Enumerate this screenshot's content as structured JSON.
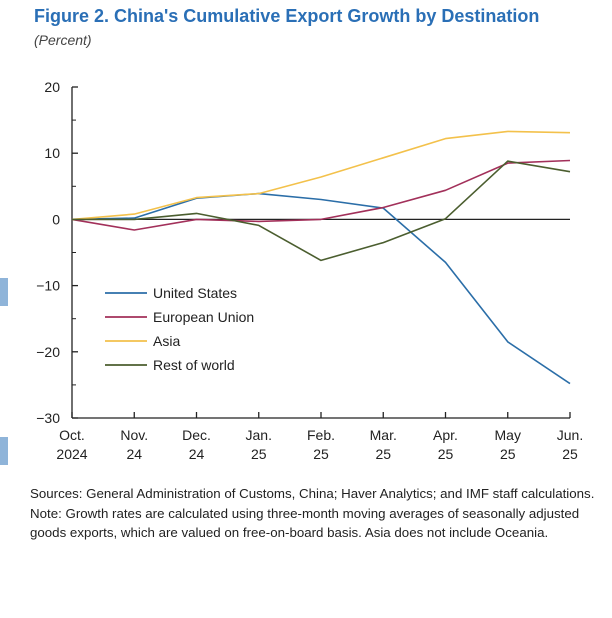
{
  "header": {
    "title": "Figure 2. China's Cumulative Export Growth by Destination",
    "subtitle": "(Percent)"
  },
  "notes": {
    "sources": "Sources: General Administration of Customs, China; Haver Analytics; and IMF staff calculations.",
    "note": "Note: Growth rates are calculated using three-month moving averages of seasonally adjusted goods exports, which are valued on free-on-board basis. Asia does not include Oceania."
  },
  "colors": {
    "accent": "#2a6fb6",
    "side_mark": "#8fb4d9"
  },
  "chart_data": {
    "type": "line",
    "title": "Figure 2. China's Cumulative Export Growth by Destination",
    "ylabel": "(Percent)",
    "xlabel": "",
    "ylim": [
      -30,
      20
    ],
    "yticks": [
      20,
      10,
      0,
      -10,
      -20,
      -30
    ],
    "yticks_labels": [
      "20",
      "10",
      "0",
      "−10",
      "−20",
      "−30"
    ],
    "categories": [
      {
        "line1": "Oct.",
        "line2": "2024"
      },
      {
        "line1": "Nov.",
        "line2": "24"
      },
      {
        "line1": "Dec.",
        "line2": "24"
      },
      {
        "line1": "Jan.",
        "line2": "25"
      },
      {
        "line1": "Feb.",
        "line2": "25"
      },
      {
        "line1": "Mar.",
        "line2": "25"
      },
      {
        "line1": "Apr.",
        "line2": "25"
      },
      {
        "line1": "May",
        "line2": "25"
      },
      {
        "line1": "Jun.",
        "line2": "25"
      }
    ],
    "legend_position": "lower-left",
    "series": [
      {
        "name": "United States",
        "color": "#2b6ea8",
        "values": [
          0,
          0.2,
          3.2,
          3.9,
          3.0,
          1.7,
          -6.5,
          -18.5,
          -24.8
        ]
      },
      {
        "name": "European Union",
        "color": "#a2305a",
        "values": [
          0,
          -1.6,
          0,
          -0.3,
          0,
          1.8,
          4.4,
          8.5,
          8.9
        ]
      },
      {
        "name": "Asia",
        "color": "#f3c14b",
        "values": [
          0,
          0.8,
          3.3,
          3.9,
          6.4,
          9.3,
          12.2,
          13.3,
          13.1
        ]
      },
      {
        "name": "Rest of world",
        "color": "#4b5e2f",
        "values": [
          0,
          0,
          0.9,
          -0.9,
          -6.2,
          -3.5,
          0.1,
          8.8,
          7.2
        ]
      }
    ],
    "zero_line": true,
    "grid": false
  }
}
